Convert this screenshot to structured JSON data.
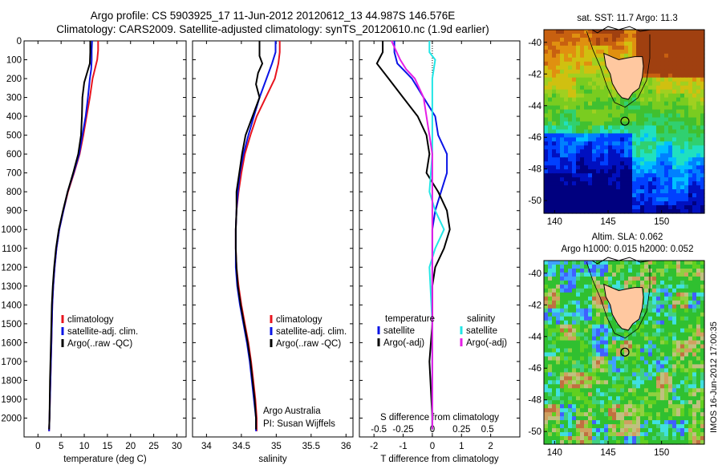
{
  "header": {
    "title_line1": "Argo profile: CS 5903925_17 11-Jun-2012 20120612_13 44.987S 146.576E",
    "title_line2": "Climatology: CARS2009. Satellite-adjusted climatology: synTS_20120610.nc (1.9d earlier)"
  },
  "side_label": "IMOS 16-Jun-2012 17:00:35",
  "colors": {
    "climatology": "#e8141e",
    "satellite": "#0a14e6",
    "argo": "#000000",
    "s_satellite": "#22e6e6",
    "s_argo": "#e61ee6"
  },
  "chart_data": [
    {
      "type": "line",
      "xlabel": "temperature (deg C)",
      "ylabel": "",
      "xlim": [
        -3,
        32
      ],
      "ylim": [
        2100,
        0
      ],
      "xticks": [
        0,
        5,
        10,
        15,
        20,
        25,
        30
      ],
      "yticks": [
        0,
        100,
        200,
        300,
        400,
        500,
        600,
        700,
        800,
        900,
        1000,
        1100,
        1200,
        1300,
        1400,
        1500,
        1600,
        1700,
        1800,
        1900,
        2000
      ],
      "legend": [
        "climatology",
        "satellite-adj. clim.",
        "Argo(..raw -QC)"
      ],
      "series": [
        {
          "name": "climatology",
          "color": "#e8141e",
          "points": [
            [
              13.0,
              0
            ],
            [
              13.0,
              50
            ],
            [
              12.8,
              100
            ],
            [
              12.3,
              150
            ],
            [
              11.8,
              200
            ],
            [
              11.2,
              300
            ],
            [
              10.5,
              400
            ],
            [
              9.8,
              500
            ],
            [
              9.0,
              600
            ],
            [
              7.8,
              700
            ],
            [
              6.5,
              800
            ],
            [
              5.5,
              900
            ],
            [
              4.6,
              1000
            ],
            [
              4.0,
              1100
            ],
            [
              3.6,
              1200
            ],
            [
              3.3,
              1300
            ],
            [
              3.1,
              1400
            ],
            [
              2.9,
              1600
            ],
            [
              2.7,
              1800
            ],
            [
              2.5,
              2000
            ],
            [
              2.4,
              2070
            ]
          ]
        },
        {
          "name": "satellite-adj. clim.",
          "color": "#0a14e6",
          "points": [
            [
              11.7,
              0
            ],
            [
              11.6,
              50
            ],
            [
              11.6,
              100
            ],
            [
              11.5,
              150
            ],
            [
              11.2,
              200
            ],
            [
              10.8,
              300
            ],
            [
              10.3,
              400
            ],
            [
              9.6,
              500
            ],
            [
              8.9,
              600
            ],
            [
              7.7,
              700
            ],
            [
              6.4,
              800
            ],
            [
              5.5,
              900
            ],
            [
              4.6,
              1000
            ],
            [
              4.0,
              1100
            ],
            [
              3.6,
              1200
            ],
            [
              3.3,
              1300
            ],
            [
              3.1,
              1400
            ],
            [
              2.9,
              1600
            ],
            [
              2.7,
              1800
            ],
            [
              2.5,
              2000
            ],
            [
              2.4,
              2070
            ]
          ]
        },
        {
          "name": "Argo(..raw -QC)",
          "color": "#000000",
          "points": [
            [
              11.3,
              0
            ],
            [
              11.3,
              60
            ],
            [
              11.2,
              120
            ],
            [
              10.6,
              170
            ],
            [
              10.0,
              220
            ],
            [
              9.6,
              300
            ],
            [
              9.5,
              400
            ],
            [
              9.3,
              500
            ],
            [
              8.7,
              600
            ],
            [
              7.6,
              700
            ],
            [
              6.4,
              800
            ],
            [
              5.4,
              900
            ],
            [
              4.5,
              1000
            ],
            [
              3.9,
              1100
            ],
            [
              3.5,
              1200
            ],
            [
              3.2,
              1300
            ],
            [
              3.0,
              1400
            ],
            [
              2.8,
              1600
            ],
            [
              2.6,
              1800
            ],
            [
              2.5,
              2000
            ],
            [
              2.4,
              2060
            ]
          ]
        }
      ]
    },
    {
      "type": "line",
      "xlabel": "salinity",
      "ylabel": "",
      "xlim": [
        33.8,
        36.1
      ],
      "ylim": [
        2100,
        0
      ],
      "xticks": [
        34,
        34.5,
        35,
        35.5,
        36
      ],
      "yticks": [],
      "legend": [
        "climatology",
        "satellite-adj. clim.",
        "Argo(..raw -QC)"
      ],
      "annotations": [
        "Argo Australia",
        "PI: Susan Wijffels"
      ],
      "series": [
        {
          "name": "climatology",
          "color": "#e8141e",
          "points": [
            [
              35.05,
              0
            ],
            [
              35.05,
              60
            ],
            [
              35.03,
              120
            ],
            [
              34.98,
              200
            ],
            [
              34.85,
              300
            ],
            [
              34.72,
              400
            ],
            [
              34.63,
              500
            ],
            [
              34.55,
              600
            ],
            [
              34.5,
              700
            ],
            [
              34.46,
              800
            ],
            [
              34.43,
              900
            ],
            [
              34.42,
              1000
            ],
            [
              34.42,
              1100
            ],
            [
              34.43,
              1200
            ],
            [
              34.46,
              1300
            ],
            [
              34.5,
              1400
            ],
            [
              34.55,
              1500
            ],
            [
              34.6,
              1600
            ],
            [
              34.64,
              1700
            ],
            [
              34.67,
              1800
            ],
            [
              34.7,
              1900
            ],
            [
              34.72,
              2000
            ],
            [
              34.72,
              2070
            ]
          ]
        },
        {
          "name": "satellite-adj. clim.",
          "color": "#0a14e6",
          "points": [
            [
              34.99,
              0
            ],
            [
              34.99,
              60
            ],
            [
              34.94,
              120
            ],
            [
              34.86,
              200
            ],
            [
              34.76,
              300
            ],
            [
              34.68,
              400
            ],
            [
              34.6,
              500
            ],
            [
              34.53,
              600
            ],
            [
              34.48,
              700
            ],
            [
              34.45,
              800
            ],
            [
              34.43,
              900
            ],
            [
              34.42,
              1000
            ],
            [
              34.42,
              1100
            ],
            [
              34.42,
              1200
            ],
            [
              34.44,
              1300
            ],
            [
              34.48,
              1400
            ],
            [
              34.53,
              1500
            ],
            [
              34.58,
              1600
            ],
            [
              34.62,
              1700
            ],
            [
              34.65,
              1800
            ],
            [
              34.68,
              1900
            ],
            [
              34.71,
              2000
            ],
            [
              34.71,
              2070
            ]
          ]
        },
        {
          "name": "Argo(..raw -QC)",
          "color": "#000000",
          "points": [
            [
              34.76,
              0
            ],
            [
              34.76,
              80
            ],
            [
              34.8,
              120
            ],
            [
              34.74,
              170
            ],
            [
              34.71,
              230
            ],
            [
              34.76,
              300
            ],
            [
              34.66,
              400
            ],
            [
              34.56,
              500
            ],
            [
              34.51,
              600
            ],
            [
              34.47,
              700
            ],
            [
              34.43,
              800
            ],
            [
              34.43,
              900
            ],
            [
              34.42,
              1000
            ],
            [
              34.42,
              1100
            ],
            [
              34.43,
              1200
            ],
            [
              34.45,
              1300
            ],
            [
              34.49,
              1400
            ],
            [
              34.54,
              1500
            ],
            [
              34.59,
              1600
            ],
            [
              34.63,
              1700
            ],
            [
              34.66,
              1800
            ],
            [
              34.69,
              1900
            ],
            [
              34.71,
              2000
            ],
            [
              34.71,
              2060
            ]
          ]
        }
      ]
    },
    {
      "type": "line",
      "xlabel": "T difference from climatology",
      "ylabel": "",
      "title_bottom": "S difference from climatology",
      "xlim": [
        -2.5,
        3
      ],
      "ylim": [
        2100,
        0
      ],
      "xticks": [
        -2,
        -1,
        0,
        1,
        2
      ],
      "sticks": [
        "-0.5",
        "-0.25",
        "0",
        "0.25",
        "0.5"
      ],
      "s_tick_positions": [
        -2,
        -1,
        0,
        1,
        2
      ],
      "legend_left": [
        "temperature",
        "satellite",
        "Argo(-adj)"
      ],
      "legend_right": [
        "salinity",
        "satellite",
        "Argo(-adj)"
      ],
      "series": [
        {
          "name": "satellite",
          "color": "#0a14e6",
          "points": [
            [
              -1.3,
              0
            ],
            [
              -1.3,
              60
            ],
            [
              -1.2,
              120
            ],
            [
              -0.7,
              200
            ],
            [
              -0.3,
              300
            ],
            [
              0.1,
              400
            ],
            [
              0.2,
              500
            ],
            [
              0.5,
              600
            ],
            [
              0.5,
              700
            ],
            [
              0.3,
              800
            ],
            [
              0.1,
              900
            ],
            [
              0.0,
              1000
            ],
            [
              0.0,
              1500
            ],
            [
              0.0,
              2000
            ],
            [
              0.0,
              2060
            ]
          ]
        },
        {
          "name": "Argo(-adj)",
          "color": "#000000",
          "points": [
            [
              -1.7,
              0
            ],
            [
              -1.7,
              60
            ],
            [
              -1.9,
              120
            ],
            [
              -1.5,
              200
            ],
            [
              -1.0,
              300
            ],
            [
              -0.5,
              400
            ],
            [
              -0.2,
              500
            ],
            [
              -0.1,
              600
            ],
            [
              -0.2,
              700
            ],
            [
              0.2,
              800
            ],
            [
              0.5,
              900
            ],
            [
              0.6,
              1000
            ],
            [
              0.4,
              1100
            ],
            [
              0.1,
              1200
            ],
            [
              0.0,
              1300
            ],
            [
              0.0,
              1500
            ],
            [
              -0.1,
              1700
            ],
            [
              0.0,
              2000
            ],
            [
              0.0,
              2060
            ]
          ]
        },
        {
          "name": "satellite",
          "color": "#22e6e6",
          "points": [
            [
              -0.1,
              0
            ],
            [
              -0.1,
              60
            ],
            [
              0.1,
              100
            ],
            [
              0.0,
              200
            ],
            [
              0.0,
              400
            ],
            [
              0.0,
              600
            ],
            [
              -0.1,
              800
            ],
            [
              0.1,
              900
            ],
            [
              0.4,
              1000
            ],
            [
              0.1,
              1100
            ],
            [
              -0.1,
              1200
            ],
            [
              0.0,
              1500
            ],
            [
              0.0,
              2060
            ]
          ]
        },
        {
          "name": "Argo(-adj)",
          "color": "#e61ee6",
          "points": [
            [
              -1.4,
              0
            ],
            [
              -1.1,
              100
            ],
            [
              -0.9,
              150
            ],
            [
              -0.6,
              200
            ],
            [
              -0.3,
              300
            ],
            [
              -0.2,
              400
            ],
            [
              -0.1,
              500
            ],
            [
              0.0,
              600
            ],
            [
              0.0,
              700
            ],
            [
              0.0,
              800
            ],
            [
              0.0,
              1000
            ],
            [
              0.0,
              1500
            ],
            [
              0.0,
              2060
            ]
          ]
        }
      ]
    },
    {
      "type": "heatmap",
      "title": "sat. SST: 11.7 Argo: 11.3",
      "xticks": [
        140,
        145,
        150
      ],
      "yticks": [
        -40,
        -42,
        -44,
        -46,
        -48,
        -50
      ],
      "xlim": [
        139,
        154
      ],
      "ylim": [
        -50.8,
        -39.2
      ],
      "marker": {
        "lon": 146.576,
        "lat": -44.987
      }
    },
    {
      "type": "heatmap",
      "title": "Altim. SLA: 0.062",
      "subtitle": "Argo h1000: 0.015 h2000: 0.052",
      "xticks": [
        140,
        145,
        150
      ],
      "yticks": [
        -40,
        -42,
        -44,
        -46,
        -48,
        -50
      ],
      "xlim": [
        139,
        154
      ],
      "ylim": [
        -50.8,
        -39.2
      ],
      "marker": {
        "lon": 146.576,
        "lat": -44.987
      }
    }
  ]
}
